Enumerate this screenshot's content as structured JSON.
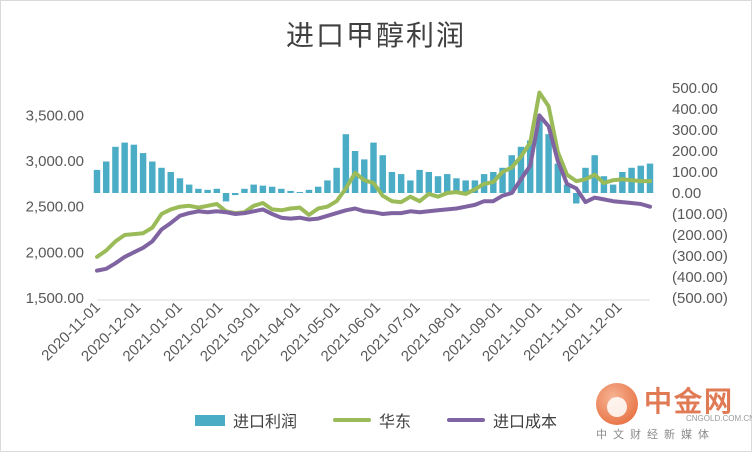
{
  "chart_data": {
    "type": "bar",
    "title": "进口甲醇利润",
    "x": [
      "2020-11-01",
      "2020-11-08",
      "2020-11-15",
      "2020-11-22",
      "2020-11-29",
      "2020-12-06",
      "2020-12-13",
      "2020-12-20",
      "2020-12-27",
      "2021-01-03",
      "2021-01-10",
      "2021-01-17",
      "2021-01-24",
      "2021-01-31",
      "2021-02-07",
      "2021-02-14",
      "2021-02-21",
      "2021-02-28",
      "2021-03-07",
      "2021-03-14",
      "2021-03-21",
      "2021-03-28",
      "2021-04-04",
      "2021-04-11",
      "2021-04-18",
      "2021-04-25",
      "2021-05-02",
      "2021-05-09",
      "2021-05-16",
      "2021-05-23",
      "2021-05-30",
      "2021-06-06",
      "2021-06-13",
      "2021-06-20",
      "2021-06-27",
      "2021-07-04",
      "2021-07-11",
      "2021-07-18",
      "2021-07-25",
      "2021-08-01",
      "2021-08-08",
      "2021-08-15",
      "2021-08-22",
      "2021-08-29",
      "2021-09-05",
      "2021-09-12",
      "2021-09-19",
      "2021-09-26",
      "2021-10-03",
      "2021-10-10",
      "2021-10-17",
      "2021-10-24",
      "2021-10-31",
      "2021-11-07",
      "2021-11-14",
      "2021-11-21",
      "2021-11-28",
      "2021-12-05",
      "2021-12-12",
      "2021-12-19",
      "2021-12-26"
    ],
    "x_tick_labels": [
      "2020-11-01",
      "2020-12-01",
      "2021-01-01",
      "2021-02-01",
      "2021-03-01",
      "2021-04-01",
      "2021-05-01",
      "2021-06-01",
      "2021-07-01",
      "2021-08-01",
      "2021-09-01",
      "2021-10-01",
      "2021-11-01",
      "2021-12-01"
    ],
    "x_tick_indices": [
      0,
      4.4,
      8.9,
      13.3,
      17.3,
      21.7,
      26.0,
      30.4,
      34.7,
      39.1,
      43.6,
      47.9,
      52.3,
      56.6
    ],
    "y_left": {
      "ticks": [
        "1,500.00",
        "2,000.00",
        "2,500.00",
        "3,000.00",
        "3,500.00"
      ],
      "min": 1500,
      "max": 3800
    },
    "y_right": {
      "ticks": [
        "(500.00)",
        "(400.00)",
        "(300.00)",
        "(200.00)",
        "(100.00)",
        "0.00",
        "100.00",
        "200.00",
        "300.00",
        "400.00",
        "500.00"
      ],
      "min": -500,
      "max": 500
    },
    "series": [
      {
        "name": "进口利润",
        "kind": "bar",
        "axis": "right",
        "color": "#4bacc6",
        "values": [
          110,
          150,
          220,
          240,
          230,
          190,
          150,
          120,
          100,
          70,
          40,
          20,
          15,
          20,
          -40,
          -10,
          20,
          40,
          35,
          30,
          20,
          10,
          5,
          15,
          30,
          60,
          120,
          280,
          200,
          160,
          240,
          180,
          100,
          90,
          60,
          110,
          100,
          80,
          90,
          70,
          60,
          60,
          90,
          100,
          120,
          180,
          220,
          250,
          360,
          280,
          140,
          40,
          -50,
          120,
          180,
          80,
          40,
          100,
          120,
          130,
          140
        ]
      },
      {
        "name": "华东",
        "kind": "line",
        "axis": "left",
        "color": "#9bbb59",
        "values": [
          1950,
          2020,
          2120,
          2190,
          2200,
          2210,
          2270,
          2420,
          2470,
          2500,
          2510,
          2490,
          2510,
          2530,
          2450,
          2430,
          2440,
          2510,
          2540,
          2470,
          2460,
          2480,
          2490,
          2410,
          2480,
          2500,
          2560,
          2700,
          2870,
          2790,
          2760,
          2620,
          2560,
          2550,
          2610,
          2560,
          2640,
          2610,
          2650,
          2660,
          2640,
          2690,
          2750,
          2770,
          2880,
          2930,
          3050,
          3200,
          3750,
          3600,
          3100,
          2850,
          2780,
          2800,
          2850,
          2760,
          2790,
          2800,
          2790,
          2780,
          2780
        ]
      },
      {
        "name": "进口成本",
        "kind": "line",
        "axis": "left",
        "color": "#8064a2",
        "values": [
          1800,
          1820,
          1880,
          1950,
          2000,
          2050,
          2120,
          2250,
          2320,
          2400,
          2430,
          2450,
          2440,
          2450,
          2440,
          2420,
          2430,
          2450,
          2470,
          2420,
          2380,
          2370,
          2380,
          2360,
          2370,
          2400,
          2430,
          2460,
          2480,
          2450,
          2440,
          2420,
          2430,
          2430,
          2450,
          2440,
          2450,
          2460,
          2470,
          2480,
          2500,
          2520,
          2560,
          2560,
          2620,
          2650,
          2800,
          2950,
          3500,
          3380,
          3000,
          2750,
          2700,
          2550,
          2600,
          2580,
          2560,
          2550,
          2540,
          2530,
          2500
        ]
      }
    ]
  },
  "legend": [
    "进口利润",
    "华东",
    "进口成本"
  ],
  "watermark": {
    "name": "中金网",
    "url": "CNGOLD.COM.CN",
    "slogan": "中文财经新媒体"
  }
}
